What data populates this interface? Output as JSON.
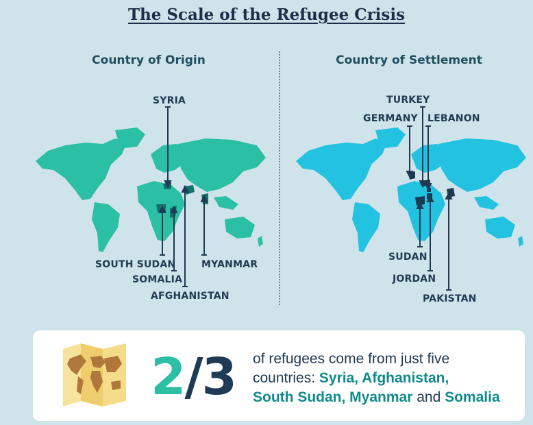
{
  "title": "The Scale of the Refugee Crisis",
  "origin": {
    "heading": "Country of Origin",
    "map_color": "#2bbfa5",
    "labels": {
      "syria": "SYRIA",
      "south_sudan": "SOUTH SUDAN",
      "somalia": "SOMALIA",
      "afghanistan": "AFGHANISTAN",
      "myanmar": "MYANMAR"
    }
  },
  "settlement": {
    "heading": "Country of Settlement",
    "map_color": "#22c2e0",
    "labels": {
      "turkey": "TURKEY",
      "germany": "GERMANY",
      "lebanon": "LEBANON",
      "sudan": "SUDAN",
      "jordan": "JORDAN",
      "pakistan": "PAKISTAN"
    }
  },
  "stat": {
    "numerator": "2",
    "slash": "/",
    "denominator": "3",
    "line1": "of refugees come from just five",
    "line2_prefix": "countries: ",
    "syria": "Syria",
    "comma1": ", ",
    "afghanistan": "Afghanistan",
    "comma2": ",",
    "south_sudan": "South Sudan",
    "comma3": ", ",
    "myanmar": "Myanmar",
    "and": " and ",
    "somalia": "Somalia"
  },
  "icons": {
    "map_icon": "folded-world-map-icon"
  },
  "colors": {
    "background": "#cfe3ea",
    "dark": "#1f3a54",
    "teal_highlight": "#0f8a8a"
  }
}
